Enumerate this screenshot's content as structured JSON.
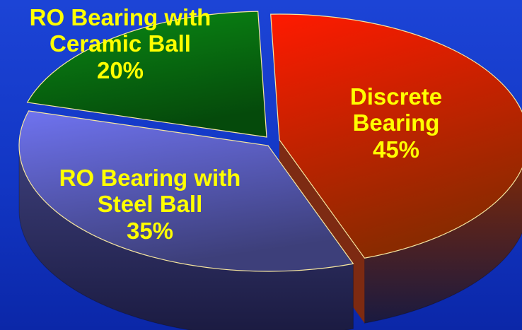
{
  "chart_data": {
    "type": "pie",
    "style": "3d-exploded-pie",
    "title": "",
    "background_color": "#1636c8",
    "label_color": "#ffff00",
    "slices": [
      {
        "label_lines": [
          "Discrete",
          "Bearing"
        ],
        "value": 45,
        "percent_label": "45%",
        "color": "#ff1a00",
        "color_dark": "#8a2a00"
      },
      {
        "label_lines": [
          "RO Bearing with",
          "Steel Ball"
        ],
        "value": 35,
        "percent_label": "35%",
        "color": "#6f73f0",
        "color_dark": "#3d3f7a"
      },
      {
        "label_lines": [
          "RO Bearing with",
          "Ceramic Ball"
        ],
        "value": 20,
        "percent_label": "20%",
        "color": "#0a8a14",
        "color_dark": "#054a0b"
      }
    ]
  }
}
